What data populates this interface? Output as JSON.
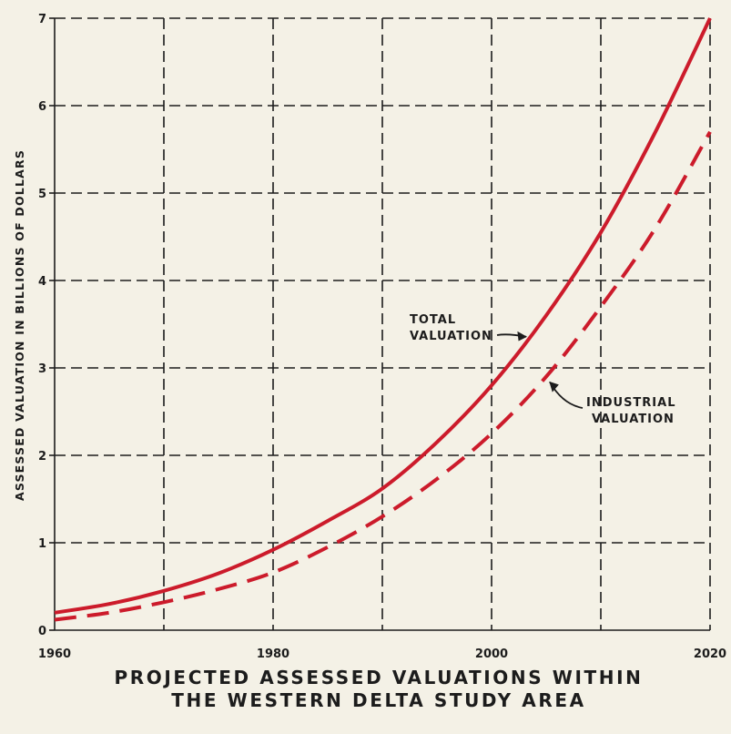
{
  "chart_data": {
    "type": "line",
    "title_lines": [
      "PROJECTED ASSESSED VALUATIONS WITHIN",
      "THE WESTERN DELTA STUDY AREA"
    ],
    "xlabel": "",
    "ylabel": "ASSESSED VALUATION IN BILLIONS OF DOLLARS",
    "xlim": [
      1960,
      2020
    ],
    "ylim": [
      0,
      7
    ],
    "x_ticks": [
      "1960",
      "1980",
      "2000",
      "2020"
    ],
    "y_ticks": [
      "0",
      "1",
      "2",
      "3",
      "4",
      "5",
      "6",
      "7"
    ],
    "grid": true,
    "grid_style": "dashed",
    "colors": {
      "series": "#cc1b2b",
      "grid": "#1c1c1c",
      "text": "#1c1c1c",
      "background": "#f4f1e6"
    },
    "series": [
      {
        "name": "TOTAL VALUATION",
        "style": "solid",
        "x": [
          1960,
          1965,
          1970,
          1975,
          1980,
          1985,
          1990,
          1995,
          2000,
          2005,
          2010,
          2015,
          2020
        ],
        "y": [
          0.2,
          0.3,
          0.45,
          0.65,
          0.92,
          1.25,
          1.62,
          2.15,
          2.8,
          3.6,
          4.55,
          5.7,
          7.0
        ]
      },
      {
        "name": "INDUSTRIAL VALUATION",
        "style": "dashed",
        "x": [
          1960,
          1965,
          1970,
          1975,
          1980,
          1985,
          1990,
          1995,
          2000,
          2005,
          2010,
          2015,
          2020
        ],
        "y": [
          0.12,
          0.2,
          0.32,
          0.47,
          0.66,
          0.95,
          1.3,
          1.73,
          2.25,
          2.9,
          3.7,
          4.6,
          5.7
        ]
      }
    ],
    "annotations": [
      {
        "lines": [
          "TOTAL",
          "VALUATION"
        ],
        "target_series": 0,
        "target_x": 2004
      },
      {
        "lines": [
          "INDUSTRIAL",
          "VALUATION"
        ],
        "target_series": 1,
        "target_x": 2005
      }
    ]
  }
}
